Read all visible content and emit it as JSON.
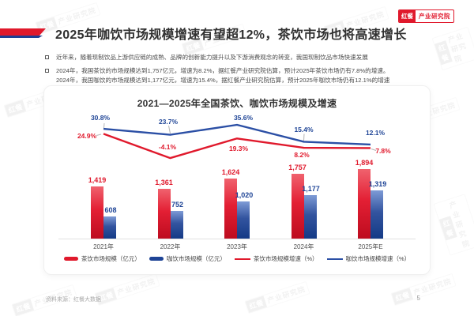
{
  "header": {
    "title": "2025年咖饮市场规模增速有望超12%，茶饮市场也将高速增长",
    "logo": {
      "brand": "红餐",
      "suffix": "产业研究院"
    }
  },
  "bullets": {
    "item1": "近年来，随着现制饮品上游供应链的成熟、品牌的创新能力提升以及下游消费观念的转变，我国现制饮品市场快速发展",
    "item2_line1": "2024年，我国茶饮的市场规模达到1,757亿元，增速为8.2%，据红餐产业研究院估算，预计2025年茶饮市场仍有7.8%的增速。",
    "item2_line2": "2024年，我国咖饮的市场规模达到1,177亿元，增速为15.4%，据红餐产业研究院估算，预计2025年咖饮市场仍有12.1%的增速"
  },
  "chart_data": {
    "type": "bar",
    "subtype": "combo-bar-line",
    "title": "2021—2025年全国茶饮、咖饮市场规模及增速",
    "categories": [
      "2021年",
      "2022年",
      "2023年",
      "2024年",
      "2025年E"
    ],
    "series": [
      {
        "name": "茶饮市场规模（亿元）",
        "kind": "bar",
        "color": "#e0192c",
        "values": [
          1419,
          1361,
          1624,
          1757,
          1894
        ],
        "labels": [
          "1,419",
          "1,361",
          "1,624",
          "1,757",
          "1,894"
        ]
      },
      {
        "name": "咖饮市场规模（亿元）",
        "kind": "bar",
        "color": "#1e4496",
        "values": [
          608,
          752,
          1020,
          1177,
          1319
        ],
        "labels": [
          "608",
          "752",
          "1,020",
          "1,177",
          "1,319"
        ]
      },
      {
        "name": "茶饮市场规模增速（%）",
        "kind": "line",
        "color": "#e0192c",
        "values": [
          24.9,
          -4.1,
          19.3,
          8.2,
          7.8
        ],
        "labels": [
          "24.9%",
          "-4.1%",
          "19.3%",
          "8.2%",
          "7.8%"
        ]
      },
      {
        "name": "咖饮市场规模增速（%）",
        "kind": "line",
        "color": "#2b4fa5",
        "values": [
          30.8,
          23.7,
          35.6,
          15.4,
          12.1
        ],
        "labels": [
          "30.8%",
          "23.7%",
          "35.6%",
          "15.4%",
          "12.1%"
        ]
      }
    ],
    "legend_position": "bottom",
    "grid": false,
    "watermark_text": "红餐 产业研究院"
  },
  "footer": {
    "source": "资料来源：红餐大数据",
    "page": "5"
  },
  "colors": {
    "red": "#e0192c",
    "blue": "#1e4496",
    "line_blue": "#2b4fa5",
    "leader_gray": "#b5b5b5"
  }
}
